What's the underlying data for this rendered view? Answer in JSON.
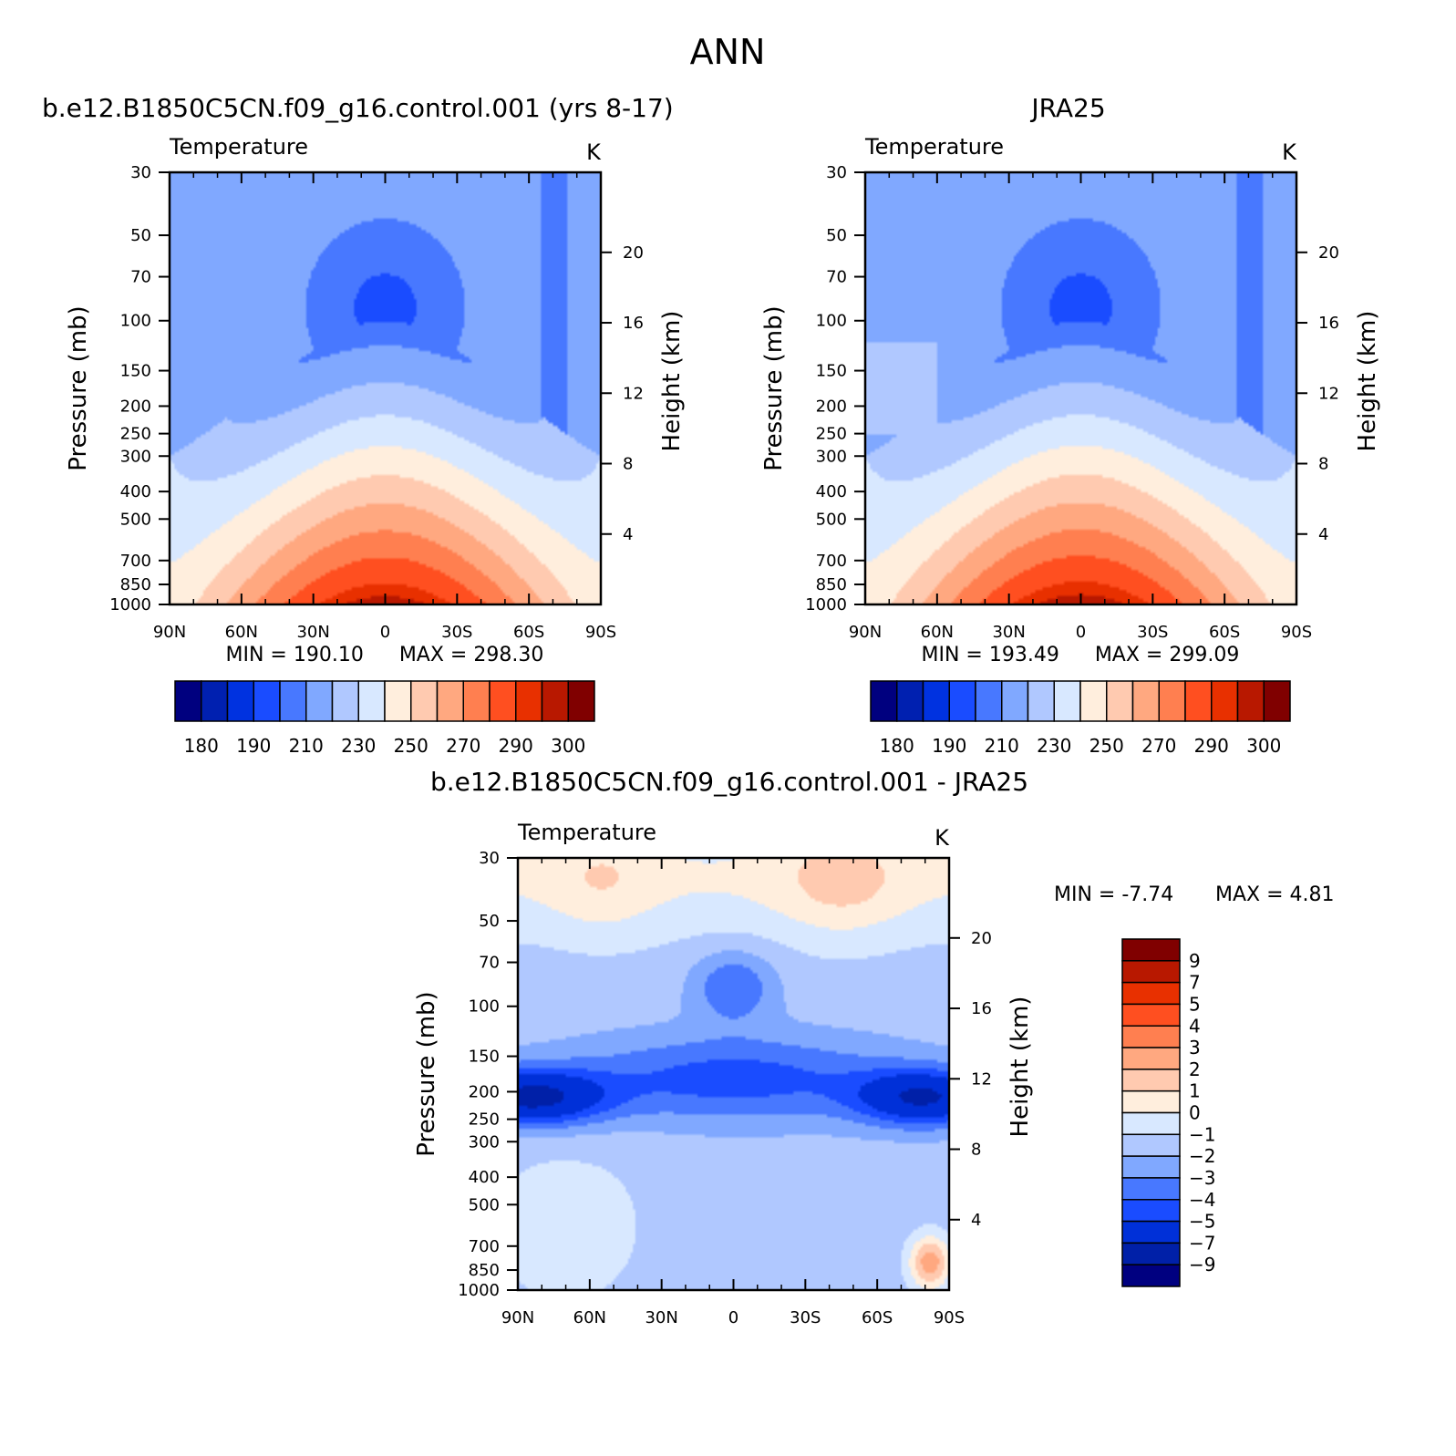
{
  "figure": {
    "title": "ANN"
  },
  "chart_data": [
    {
      "id": "model",
      "type": "contour",
      "heading": "b.e12.B1850C5CN.f09_g16.control.001 (yrs 8-17)",
      "variable": "Temperature",
      "units": "K",
      "xlabel": "",
      "ylabel": "Pressure (mb)",
      "ylabel_right": "Height (km)",
      "x_ticks": [
        "90N",
        "60N",
        "30N",
        "0",
        "30S",
        "60S",
        "90S"
      ],
      "x_values": [
        90,
        60,
        30,
        0,
        -30,
        -60,
        -90
      ],
      "xlim": [
        90,
        -90
      ],
      "y_ticks": [
        "30",
        "50",
        "70",
        "100",
        "150",
        "200",
        "250",
        "300",
        "400",
        "500",
        "700",
        "850",
        "1000"
      ],
      "y_values": [
        30,
        50,
        70,
        100,
        150,
        200,
        250,
        300,
        400,
        500,
        700,
        850,
        1000
      ],
      "ylim": [
        1000,
        30
      ],
      "y_scale": "log",
      "height_ticks": [
        "20",
        "16",
        "12",
        "8",
        "4"
      ],
      "height_values": [
        20,
        16,
        12,
        8,
        4
      ],
      "min_label": "MIN = 190.10",
      "max_label": "MAX = 298.30",
      "min": 190.1,
      "max": 298.3,
      "levels": [
        180,
        185,
        190,
        200,
        210,
        220,
        230,
        240,
        250,
        260,
        270,
        280,
        290,
        295,
        300
      ],
      "colorbar_labels": [
        "180",
        "190",
        "210",
        "230",
        "250",
        "270",
        "290",
        "300"
      ],
      "colorbar_orientation": "horizontal"
    },
    {
      "id": "obs",
      "type": "contour",
      "heading": "JRA25",
      "variable": "Temperature",
      "units": "K",
      "xlabel": "",
      "ylabel": "Pressure (mb)",
      "ylabel_right": "Height (km)",
      "x_ticks": [
        "90N",
        "60N",
        "30N",
        "0",
        "30S",
        "60S",
        "90S"
      ],
      "x_values": [
        90,
        60,
        30,
        0,
        -30,
        -60,
        -90
      ],
      "xlim": [
        90,
        -90
      ],
      "y_ticks": [
        "30",
        "50",
        "70",
        "100",
        "150",
        "200",
        "250",
        "300",
        "400",
        "500",
        "700",
        "850",
        "1000"
      ],
      "y_values": [
        30,
        50,
        70,
        100,
        150,
        200,
        250,
        300,
        400,
        500,
        700,
        850,
        1000
      ],
      "ylim": [
        1000,
        30
      ],
      "y_scale": "log",
      "height_ticks": [
        "20",
        "16",
        "12",
        "8",
        "4"
      ],
      "height_values": [
        20,
        16,
        12,
        8,
        4
      ],
      "min_label": "MIN = 193.49",
      "max_label": "MAX = 299.09",
      "min": 193.49,
      "max": 299.09,
      "levels": [
        180,
        185,
        190,
        200,
        210,
        220,
        230,
        240,
        250,
        260,
        270,
        280,
        290,
        295,
        300
      ],
      "colorbar_labels": [
        "180",
        "190",
        "210",
        "230",
        "250",
        "270",
        "290",
        "300"
      ],
      "colorbar_orientation": "horizontal"
    },
    {
      "id": "diff",
      "type": "contour",
      "heading": "b.e12.B1850C5CN.f09_g16.control.001 - JRA25",
      "variable": "Temperature",
      "units": "K",
      "xlabel": "",
      "ylabel": "Pressure (mb)",
      "ylabel_right": "Height (km)",
      "x_ticks": [
        "90N",
        "60N",
        "30N",
        "0",
        "30S",
        "60S",
        "90S"
      ],
      "x_values": [
        90,
        60,
        30,
        0,
        -30,
        -60,
        -90
      ],
      "xlim": [
        90,
        -90
      ],
      "y_ticks": [
        "30",
        "50",
        "70",
        "100",
        "150",
        "200",
        "250",
        "300",
        "400",
        "500",
        "700",
        "850",
        "1000"
      ],
      "y_values": [
        30,
        50,
        70,
        100,
        150,
        200,
        250,
        300,
        400,
        500,
        700,
        850,
        1000
      ],
      "ylim": [
        1000,
        30
      ],
      "y_scale": "log",
      "height_ticks": [
        "20",
        "16",
        "12",
        "8",
        "4"
      ],
      "height_values": [
        20,
        16,
        12,
        8,
        4
      ],
      "min_label": "MIN = -7.74",
      "max_label": "MAX = 4.81",
      "min": -7.74,
      "max": 4.81,
      "levels": [
        -9,
        -7,
        -5,
        -4,
        -3,
        -2,
        -1,
        0,
        1,
        2,
        3,
        4,
        5,
        7,
        9
      ],
      "colorbar_labels": [
        "9",
        "7",
        "5",
        "4",
        "3",
        "2",
        "1",
        "0",
        "−1",
        "−2",
        "−3",
        "−4",
        "−5",
        "−7",
        "−9"
      ],
      "colorbar_orientation": "vertical"
    }
  ],
  "palette": {
    "abs": [
      "#00007f",
      "#0020b0",
      "#0032e0",
      "#1a4cff",
      "#4878ff",
      "#80a8ff",
      "#b0c8ff",
      "#d8e8ff",
      "#ffeedd",
      "#ffcab0",
      "#ffa880",
      "#ff7f50",
      "#ff4f20",
      "#e83000",
      "#b81800",
      "#800000"
    ],
    "diff": [
      "#000080",
      "#0020a8",
      "#0030d8",
      "#1a4cff",
      "#4878ff",
      "#80a8ff",
      "#b0c8ff",
      "#d8e8ff",
      "#ffeedd",
      "#ffcab0",
      "#ffa880",
      "#ff7f50",
      "#ff4f20",
      "#e83000",
      "#b81800",
      "#800000"
    ]
  }
}
